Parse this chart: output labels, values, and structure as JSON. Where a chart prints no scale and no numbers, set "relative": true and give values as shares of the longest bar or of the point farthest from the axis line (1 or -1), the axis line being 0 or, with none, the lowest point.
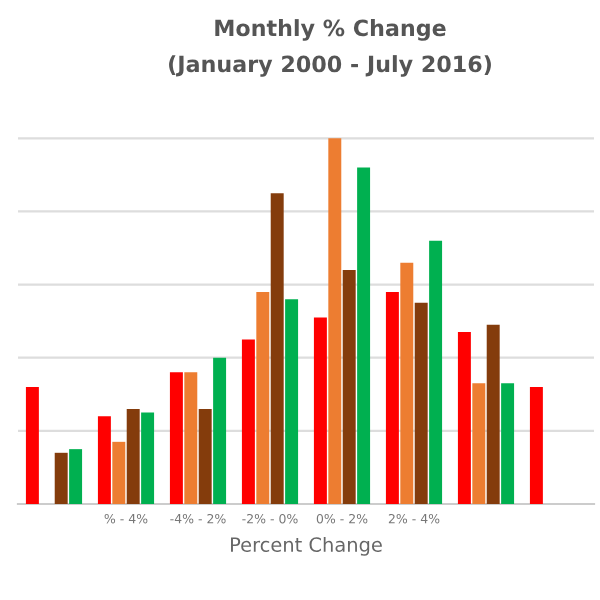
{
  "chart_data": {
    "type": "bar",
    "title": "Monthly % Change",
    "subtitle": "(January 2000 - July 2016)",
    "xlabel": "Percent Change",
    "relative": true,
    "grid": "y",
    "legend": false,
    "categories": [
      null,
      "% - 4%",
      "-4% - 2%",
      "-2% - 0%",
      "0% - 2%",
      "2% - 4%",
      null,
      null
    ],
    "series": [
      {
        "color": "#ff0000",
        "values": [
          0.32,
          0.24,
          0.36,
          0.45,
          0.51,
          0.58,
          0.47,
          0.32
        ]
      },
      {
        "color": "#ed7d31",
        "values": [
          null,
          0.17,
          0.36,
          0.58,
          1.0,
          0.66,
          0.33,
          null
        ]
      },
      {
        "color": "#843c0c",
        "values": [
          0.14,
          0.26,
          0.26,
          0.85,
          0.64,
          0.55,
          0.49,
          null
        ]
      },
      {
        "color": "#00b050",
        "values": [
          0.15,
          0.25,
          0.4,
          0.56,
          0.92,
          0.72,
          0.33,
          null
        ]
      }
    ]
  }
}
